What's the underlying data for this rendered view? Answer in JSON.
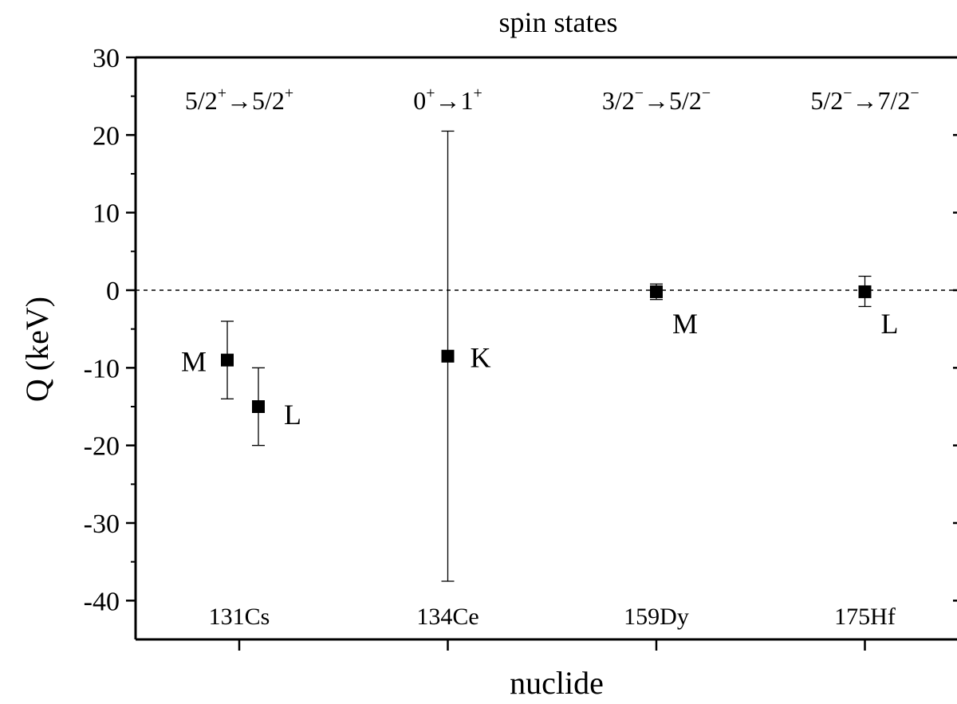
{
  "chart_data": {
    "type": "scatter",
    "title": "spin states",
    "xlabel": "nuclide",
    "ylabel": "Q (keV)",
    "ylim": [
      -45,
      30
    ],
    "yticks": [
      30,
      20,
      10,
      0,
      -10,
      -20,
      -30,
      -40
    ],
    "reference_line": {
      "y": 0,
      "style": "dashed"
    },
    "nuclides": [
      {
        "label": "131Cs",
        "transition": {
          "from": "5/2",
          "from_parity": "+",
          "to": "5/2",
          "to_parity": "+"
        }
      },
      {
        "label": "134Ce",
        "transition": {
          "from": "0",
          "from_parity": "+",
          "to": "1",
          "to_parity": "+"
        }
      },
      {
        "label": "159Dy",
        "transition": {
          "from": "3/2",
          "from_parity": "−",
          "to": "5/2",
          "to_parity": "−"
        }
      },
      {
        "label": "175Hf",
        "transition": {
          "from": "5/2",
          "from_parity": "−",
          "to": "7/2",
          "to_parity": "−"
        }
      }
    ],
    "points": [
      {
        "nuclide": "131Cs",
        "shell": "M",
        "y": -9,
        "err_low": -14,
        "err_high": -4
      },
      {
        "nuclide": "131Cs",
        "shell": "L",
        "y": -15,
        "err_low": -20,
        "err_high": -10
      },
      {
        "nuclide": "134Ce",
        "shell": "K",
        "y": -8.5,
        "err_low": -37.5,
        "err_high": 20.5
      },
      {
        "nuclide": "159Dy",
        "shell": "M",
        "y": -0.2,
        "err_low": -1.2,
        "err_high": 0.8
      },
      {
        "nuclide": "175Hf",
        "shell": "L",
        "y": -0.2,
        "err_low": -2.1,
        "err_high": 1.8
      }
    ],
    "grid": false,
    "legend": "none"
  }
}
